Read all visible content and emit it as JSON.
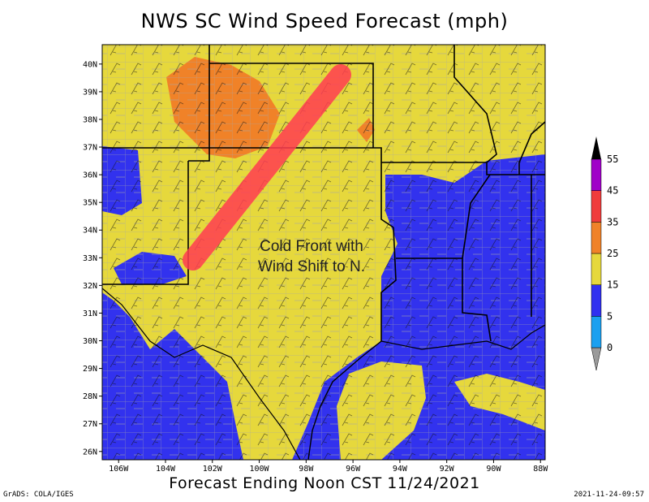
{
  "title": "NWS SC Wind Speed Forecast (mph)",
  "subtitle": "Forecast Ending Noon CST 11/24/2021",
  "credit": "GrADS: COLA/IGES",
  "timestamp": "2021-11-24-09:57",
  "annotation": [
    "Cold Front with",
    "Wind Shift to N."
  ],
  "map": {
    "lon_range": [
      -107,
      -88
    ],
    "lat_range": [
      26,
      41
    ],
    "x_ticks": [
      {
        "lon": -106,
        "label": "106W"
      },
      {
        "lon": -104,
        "label": "104W"
      },
      {
        "lon": -102,
        "label": "102W"
      },
      {
        "lon": -100,
        "label": "100W"
      },
      {
        "lon": -98,
        "label": "98W"
      },
      {
        "lon": -96,
        "label": "96W"
      },
      {
        "lon": -94,
        "label": "94W"
      },
      {
        "lon": -92,
        "label": "92W"
      },
      {
        "lon": -90,
        "label": "90W"
      },
      {
        "lon": -88,
        "label": "88W"
      }
    ],
    "y_ticks": [
      {
        "lat": 26,
        "label": "26N"
      },
      {
        "lat": 27,
        "label": "27N"
      },
      {
        "lat": 28,
        "label": "28N"
      },
      {
        "lat": 29,
        "label": "29N"
      },
      {
        "lat": 30,
        "label": "30N"
      },
      {
        "lat": 31,
        "label": "31N"
      },
      {
        "lat": 32,
        "label": "32N"
      },
      {
        "lat": 33,
        "label": "33N"
      },
      {
        "lat": 34,
        "label": "34N"
      },
      {
        "lat": 35,
        "label": "35N"
      },
      {
        "lat": 36,
        "label": "36N"
      },
      {
        "lat": 37,
        "label": "37N"
      },
      {
        "lat": 38,
        "label": "38N"
      },
      {
        "lat": 39,
        "label": "39N"
      },
      {
        "lat": 40,
        "label": "40N"
      }
    ]
  },
  "colorbar": {
    "levels": [
      "0",
      "5",
      "15",
      "25",
      "35",
      "45",
      "55"
    ],
    "colors": [
      "#9a9a9a",
      "#1aa0f0",
      "#3030f0",
      "#e6d83c",
      "#f08228",
      "#f03c3c",
      "#a000c8",
      "#000000"
    ]
  },
  "colors": {
    "blue": "#3232ee",
    "yellow": "#e6d83c",
    "orange": "#f08228",
    "front": "#ff3c50",
    "county": "#a8a8a8",
    "state": "#000000"
  }
}
